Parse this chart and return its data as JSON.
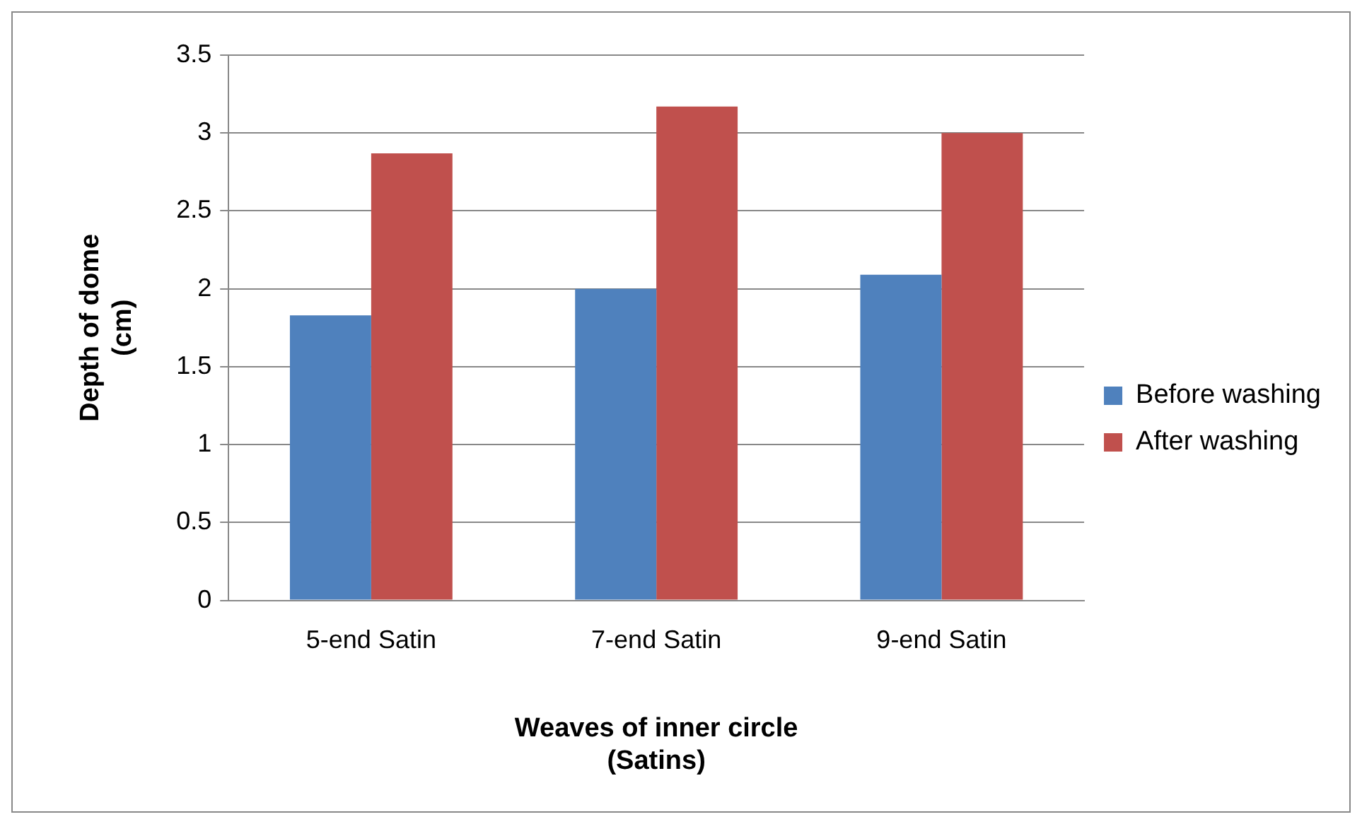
{
  "chart_data": {
    "type": "bar",
    "xlabel": "Weaves of inner circle\n(Satins)",
    "ylabel": "Depth of dome\n(cm)",
    "categories": [
      "5-end Satin",
      "7-end Satin",
      "9-end Satin"
    ],
    "series": [
      {
        "name": "Before washing",
        "color": "#4f81bd",
        "values": [
          1.83,
          2.0,
          2.09
        ]
      },
      {
        "name": "After washing",
        "color": "#c0504d",
        "values": [
          2.87,
          3.17,
          3.0
        ]
      }
    ],
    "ylim": [
      0,
      3.5
    ],
    "yticks": [
      0,
      0.5,
      1,
      1.5,
      2,
      2.5,
      3,
      3.5
    ],
    "grid": "y",
    "legend": "right"
  }
}
